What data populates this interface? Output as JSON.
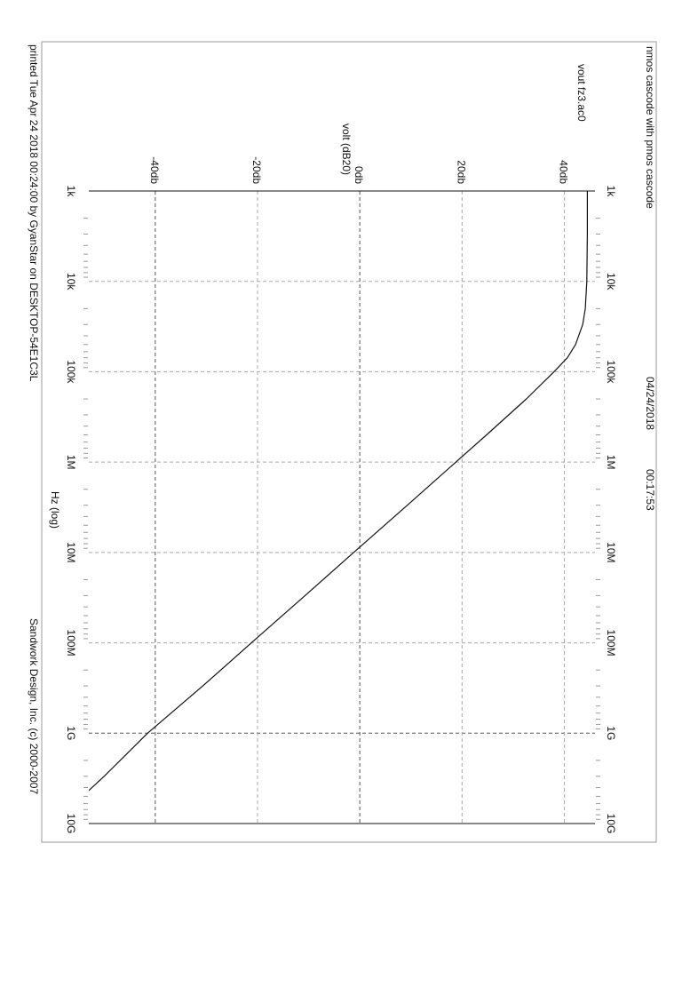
{
  "header": {
    "title": "nmos cascode with pmos cascode",
    "date": "04/24/2018",
    "time": "00:17:53"
  },
  "footer": {
    "printed": "printed Tue Apr 24 2018 00:24:00 by GyanStar on DESKTOP-54E1C3L",
    "copyright": "Sandwork Design, Inc. (c) 2000-2007"
  },
  "chart_data": {
    "type": "line",
    "title": "vout fz3.ac0",
    "xlabel": "Hz (log)",
    "ylabel": "volt (dB20)",
    "xscale": "log",
    "xlim": [
      1000,
      10000000000
    ],
    "ylim": [
      -53,
      46
    ],
    "x_ticks": [
      {
        "value": 1000,
        "label": "1k"
      },
      {
        "value": 10000,
        "label": "10k"
      },
      {
        "value": 100000,
        "label": "100k"
      },
      {
        "value": 1000000,
        "label": "1M"
      },
      {
        "value": 10000000,
        "label": "10M"
      },
      {
        "value": 100000000,
        "label": "100M"
      },
      {
        "value": 1000000000,
        "label": "1G"
      },
      {
        "value": 10000000000,
        "label": "10G"
      }
    ],
    "y_ticks": [
      {
        "value": -40,
        "label": "-40db"
      },
      {
        "value": -20,
        "label": "-20db"
      },
      {
        "value": 0,
        "label": "0db"
      },
      {
        "value": 20,
        "label": "20db"
      },
      {
        "value": 40,
        "label": "40db"
      }
    ],
    "grid": true,
    "series": [
      {
        "x": [
          1000,
          3000,
          10000,
          20000,
          30000,
          50000,
          70000,
          100000,
          200000,
          500000,
          1000000,
          3000000,
          10000000,
          30000000,
          100000000,
          300000000,
          1000000000,
          3000000000,
          10000000000
        ],
        "y": [
          44.5,
          44.5,
          44.4,
          44.1,
          43.6,
          42.2,
          40.6,
          38.0,
          32.6,
          24.8,
          18.8,
          9.3,
          -1.2,
          -10.7,
          -21.2,
          -30.7,
          -41.5,
          -50.0,
          -60.0
        ]
      }
    ]
  }
}
